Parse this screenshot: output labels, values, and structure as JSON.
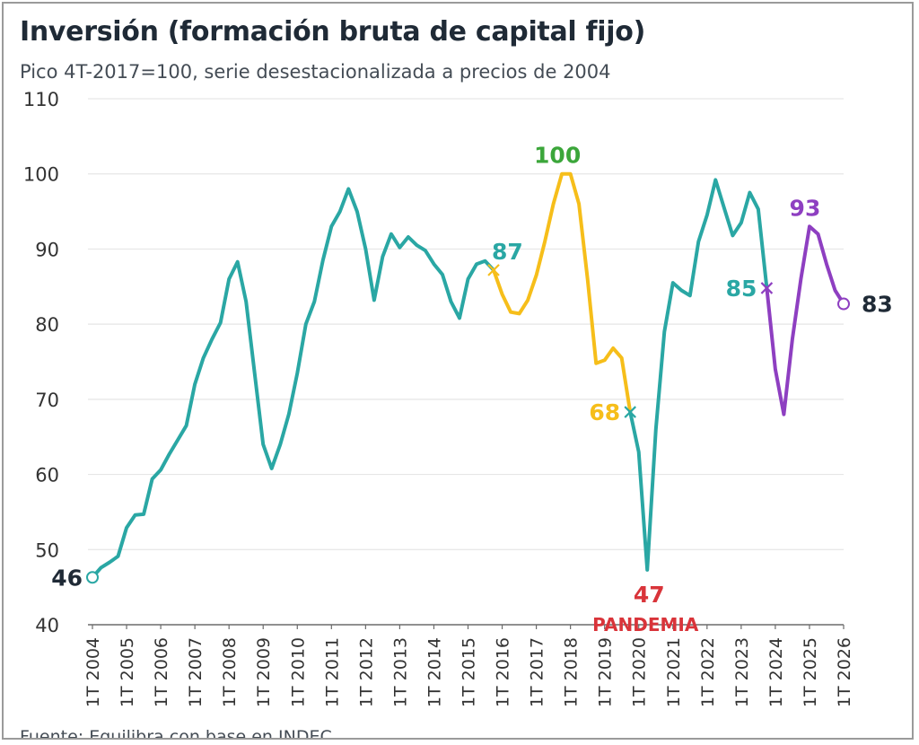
{
  "title": "Inversión (formación bruta de capital fijo)",
  "subtitle": "Pico 4T-2017=100, serie desestacionalizada a precios de 2004",
  "source": "Fuente: Equilibra con base en INDEC",
  "colors": {
    "period_a": "#2aa7a4",
    "period_b": "#f6be1a",
    "period_c": "#8e3fc1",
    "grid": "#e6e6e6",
    "axis": "#6b6b6b",
    "tick_text": "#333333",
    "annot_dark": "#1f2a36",
    "annot_green": "#3ba63a",
    "annot_red": "#d9343a"
  },
  "chart_data": {
    "type": "line",
    "title": "Inversión (formación bruta de capital fijo)",
    "subtitle": "Pico 4T-2017=100, serie desestacionalizada a precios de 2004",
    "xlabel": "",
    "ylabel": "",
    "ylim": [
      40,
      110
    ],
    "yticks": [
      110,
      100,
      90,
      80,
      70,
      60,
      50,
      40
    ],
    "xticks": [
      "1T 2004",
      "1T 2005",
      "1T 2006",
      "1T 2007",
      "1T 2008",
      "1T 2009",
      "1T 2010",
      "1T 2011",
      "1T 2012",
      "1T 2013",
      "1T 2014",
      "1T 2015",
      "1T 2016",
      "1T 2017",
      "1T 2018",
      "1T 2019",
      "1T 2020",
      "1T 2021",
      "1T 2022",
      "1T 2023",
      "1T 2024",
      "1T 2025",
      "1T 2026"
    ],
    "grid": true,
    "legend": "none",
    "series": [
      {
        "period": "1T 2004 – 4T 2015",
        "color": "#2aa7a4",
        "points": [
          [
            "1T 2004",
            46.3
          ],
          [
            "2T 2004",
            47.6
          ],
          [
            "3T 2004",
            48.3
          ],
          [
            "4T 2004",
            49.1
          ],
          [
            "1T 2005",
            52.9
          ],
          [
            "2T 2005",
            54.6
          ],
          [
            "3T 2005",
            54.7
          ],
          [
            "4T 2005",
            59.4
          ],
          [
            "1T 2006",
            60.6
          ],
          [
            "2T 2006",
            62.7
          ],
          [
            "3T 2006",
            64.6
          ],
          [
            "4T 2006",
            66.5
          ],
          [
            "1T 2007",
            72.0
          ],
          [
            "2T 2007",
            75.5
          ],
          [
            "3T 2007",
            78.0
          ],
          [
            "4T 2007",
            80.2
          ],
          [
            "1T 2008",
            86.0
          ],
          [
            "2T 2008",
            88.3
          ],
          [
            "3T 2008",
            83.0
          ],
          [
            "4T 2008",
            73.5
          ],
          [
            "1T 2009",
            64.0
          ],
          [
            "2T 2009",
            60.8
          ],
          [
            "3T 2009",
            64.0
          ],
          [
            "4T 2009",
            68.0
          ],
          [
            "1T 2010",
            73.5
          ],
          [
            "2T 2010",
            80.0
          ],
          [
            "3T 2010",
            83.0
          ],
          [
            "4T 2010",
            88.5
          ],
          [
            "1T 2011",
            93.0
          ],
          [
            "2T 2011",
            95.0
          ],
          [
            "3T 2011",
            98.0
          ],
          [
            "4T 2011",
            95.0
          ],
          [
            "1T 2012",
            90.0
          ],
          [
            "2T 2012",
            83.2
          ],
          [
            "3T 2012",
            89.0
          ],
          [
            "4T 2012",
            92.0
          ],
          [
            "1T 2013",
            90.2
          ],
          [
            "2T 2013",
            91.6
          ],
          [
            "3T 2013",
            90.5
          ],
          [
            "4T 2013",
            89.8
          ],
          [
            "1T 2014",
            88.0
          ],
          [
            "2T 2014",
            86.6
          ],
          [
            "3T 2014",
            83.0
          ],
          [
            "4T 2014",
            80.8
          ],
          [
            "1T 2015",
            86.0
          ],
          [
            "2T 2015",
            88.0
          ],
          [
            "3T 2015",
            88.4
          ],
          [
            "4T 2015",
            87.2
          ]
        ]
      },
      {
        "period": "4T 2015 – 4T 2019",
        "color": "#f6be1a",
        "points": [
          [
            "4T 2015",
            87.2
          ],
          [
            "1T 2016",
            84.0
          ],
          [
            "2T 2016",
            81.6
          ],
          [
            "3T 2016",
            81.4
          ],
          [
            "4T 2016",
            83.2
          ],
          [
            "1T 2017",
            86.5
          ],
          [
            "2T 2017",
            91.0
          ],
          [
            "3T 2017",
            96.0
          ],
          [
            "4T 2017",
            100.0
          ],
          [
            "1T 2018",
            100.0
          ],
          [
            "2T 2018",
            96.0
          ],
          [
            "3T 2018",
            86.0
          ],
          [
            "4T 2018",
            74.8
          ],
          [
            "1T 2019",
            75.2
          ],
          [
            "2T 2019",
            76.8
          ],
          [
            "3T 2019",
            75.5
          ],
          [
            "4T 2019",
            68.3
          ]
        ]
      },
      {
        "period": "4T 2019 – 4T 2023",
        "color": "#2aa7a4",
        "points": [
          [
            "4T 2019",
            68.3
          ],
          [
            "1T 2020",
            63.0
          ],
          [
            "2T 2020",
            47.3
          ],
          [
            "3T 2020",
            66.0
          ],
          [
            "4T 2020",
            79.0
          ],
          [
            "1T 2021",
            85.5
          ],
          [
            "2T 2021",
            84.5
          ],
          [
            "3T 2021",
            83.8
          ],
          [
            "4T 2021",
            91.0
          ],
          [
            "1T 2022",
            94.5
          ],
          [
            "2T 2022",
            99.2
          ],
          [
            "3T 2022",
            95.5
          ],
          [
            "4T 2022",
            91.8
          ],
          [
            "1T 2023",
            93.5
          ],
          [
            "2T 2023",
            97.5
          ],
          [
            "3T 2023",
            95.3
          ],
          [
            "4T 2023",
            84.8
          ]
        ]
      },
      {
        "period": "4T 2023 – 1T 2026",
        "color": "#8e3fc1",
        "points": [
          [
            "4T 2023",
            84.8
          ],
          [
            "1T 2024",
            74.0
          ],
          [
            "2T 2024",
            68.0
          ],
          [
            "3T 2024",
            78.0
          ],
          [
            "4T 2024",
            86.0
          ],
          [
            "1T 2025",
            93.0
          ],
          [
            "2T 2025",
            92.0
          ],
          [
            "3T 2025",
            88.0
          ],
          [
            "4T 2025",
            84.5
          ],
          [
            "1T 2026",
            82.7
          ]
        ]
      }
    ],
    "annotations": [
      {
        "text": "46",
        "x": "1T 2004",
        "y": 46.3,
        "color": "#1f2a36",
        "marker": "circle",
        "marker_color": "#2aa7a4",
        "position": "left"
      },
      {
        "text": "87",
        "x": "4T 2015",
        "y": 87.2,
        "color": "#2aa7a4",
        "marker": "x",
        "marker_color": "#f6be1a",
        "position": "upper-right"
      },
      {
        "text": "100",
        "x": "4T 2017",
        "y": 100.0,
        "color": "#3ba63a",
        "marker": "none",
        "position": "top"
      },
      {
        "text": "68",
        "x": "4T 2019",
        "y": 68.3,
        "color": "#f6be1a",
        "marker": "x",
        "marker_color": "#2aa7a4",
        "position": "left"
      },
      {
        "text": "47",
        "x": "2T 2020",
        "y": 47.3,
        "color": "#d9343a",
        "marker": "none",
        "position": "bottom"
      },
      {
        "text": "PANDEMIA",
        "x": "2T 2020",
        "y": 47.3,
        "color": "#d9343a",
        "marker": "none",
        "position": "below"
      },
      {
        "text": "85",
        "x": "4T 2023",
        "y": 84.8,
        "color": "#2aa7a4",
        "marker": "x",
        "marker_color": "#8e3fc1",
        "position": "left"
      },
      {
        "text": "93",
        "x": "1T 2025",
        "y": 93.0,
        "color": "#8e3fc1",
        "marker": "none",
        "position": "top"
      },
      {
        "text": "83",
        "x": "1T 2026",
        "y": 82.7,
        "color": "#1f2a36",
        "marker": "circle",
        "marker_color": "#8e3fc1",
        "position": "right"
      }
    ]
  }
}
